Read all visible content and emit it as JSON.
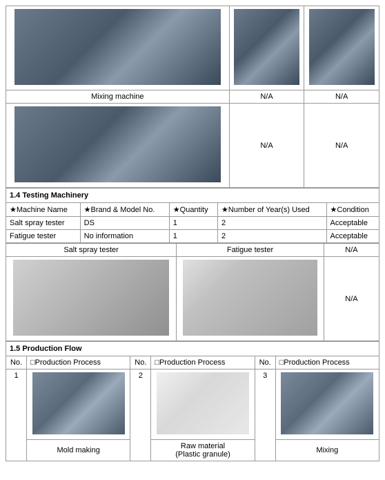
{
  "equipment_row1": {
    "captions": [
      "Mixing machine",
      "N/A",
      "N/A"
    ]
  },
  "equipment_row2": {
    "captions": [
      "",
      "N/A",
      "N/A"
    ]
  },
  "testing": {
    "title": "1.4 Testing Machinery",
    "headers": [
      "★Machine Name",
      "★Brand & Model No.",
      "★Quantity",
      "★Number of Year(s) Used",
      "★Condition"
    ],
    "rows": [
      [
        "Salt spray tester",
        "DS",
        "1",
        "2",
        "Acceptable"
      ],
      [
        "Fatigue tester",
        "No information",
        "1",
        "2",
        "Acceptable"
      ]
    ],
    "img_captions": [
      "Salt spray tester",
      "Fatigue tester",
      "N/A"
    ],
    "na_text": "N/A"
  },
  "production": {
    "title": "1.5 Production Flow",
    "col_headers": [
      "No.",
      "□Production Process",
      "No.",
      "□Production Process",
      "No.",
      "□Production Process"
    ],
    "items": [
      {
        "no": "1",
        "caption": "Mold making"
      },
      {
        "no": "2",
        "caption": "Raw material\n(Plastic granule)"
      },
      {
        "no": "3",
        "caption": "Mixing"
      }
    ]
  }
}
